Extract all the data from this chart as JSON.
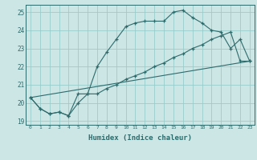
{
  "xlabel": "Humidex (Indice chaleur)",
  "bg_color": "#cce5e5",
  "grid_color": "#99cccc",
  "line_color": "#2d6b6b",
  "xlim": [
    -0.5,
    23.5
  ],
  "ylim": [
    18.8,
    25.4
  ],
  "xticks": [
    0,
    1,
    2,
    3,
    4,
    5,
    6,
    7,
    8,
    9,
    10,
    11,
    12,
    13,
    14,
    15,
    16,
    17,
    18,
    19,
    20,
    21,
    22,
    23
  ],
  "yticks": [
    19,
    20,
    21,
    22,
    23,
    24,
    25
  ],
  "line1_x": [
    0,
    1,
    2,
    3,
    4,
    5,
    6,
    7,
    8,
    9,
    10,
    11,
    12,
    13,
    14,
    15,
    16,
    17,
    18,
    19,
    20,
    21,
    22,
    23
  ],
  "line1_y": [
    20.3,
    19.7,
    19.4,
    19.5,
    19.3,
    20.5,
    20.5,
    22.0,
    22.8,
    23.5,
    24.2,
    24.4,
    24.5,
    24.5,
    24.5,
    25.0,
    25.1,
    24.7,
    24.4,
    24.0,
    23.9,
    23.0,
    23.5,
    22.3
  ],
  "line2_x": [
    0,
    1,
    2,
    3,
    4,
    5,
    6,
    7,
    8,
    9,
    10,
    11,
    12,
    13,
    14,
    15,
    16,
    17,
    18,
    19,
    20,
    21,
    22,
    23
  ],
  "line2_y": [
    20.3,
    19.7,
    19.4,
    19.5,
    19.3,
    20.0,
    20.5,
    20.5,
    20.8,
    21.0,
    21.3,
    21.5,
    21.7,
    22.0,
    22.2,
    22.5,
    22.7,
    23.0,
    23.2,
    23.5,
    23.7,
    23.9,
    22.3,
    22.3
  ],
  "line3_x": [
    0,
    23
  ],
  "line3_y": [
    20.3,
    22.3
  ]
}
